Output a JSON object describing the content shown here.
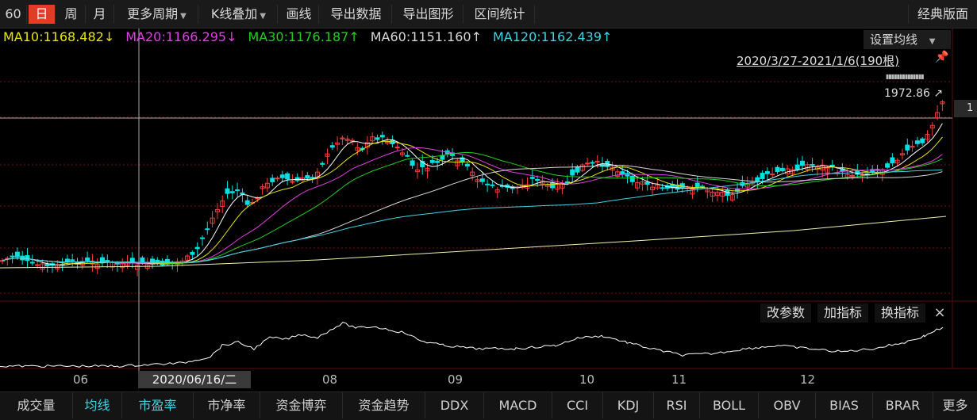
{
  "toolbar": {
    "cut_label": "60",
    "items": [
      "日",
      "周",
      "月",
      "更多周期",
      "K线叠加",
      "画线",
      "导出数据",
      "导出图形",
      "区间统计"
    ],
    "classic_layout": "经典版面"
  },
  "ma_legend": [
    {
      "label": "MA10:1168.482↓",
      "color": "#e6e600"
    },
    {
      "label": "MA20:1166.295↓",
      "color": "#e040e0"
    },
    {
      "label": "MA30:1176.187↑",
      "color": "#20d020"
    },
    {
      "label": "MA60:1151.160↑",
      "color": "#d8d8d8"
    },
    {
      "label": "MA120:1162.439↑",
      "color": "#3fd4e4"
    }
  ],
  "ma_settings_label": "设置均线",
  "range_label": "2020/3/27-2021/1/6(190根)",
  "high_marker": {
    "dots": "▮▮▮▮▮▮▮▮▮▮▮▮▮▮",
    "label": "1972.86"
  },
  "price_tag": "1",
  "indicator_buttons": [
    "改参数",
    "加指标",
    "换指标"
  ],
  "close_icon": "×",
  "months": [
    "06",
    "08",
    "09",
    "10",
    "11",
    "12"
  ],
  "crosshair_date": "2020/06/16/二",
  "bottom_tabs": [
    "成交量",
    "均线",
    "市盈率",
    "市净率",
    "资金博弈",
    "资金趋势",
    "DDX",
    "MACD",
    "CCI",
    "KDJ",
    "RSI",
    "BOLL",
    "OBV",
    "BIAS",
    "BRAR",
    "更多"
  ],
  "selected_tabs": [
    "均线",
    "市盈率"
  ]
}
